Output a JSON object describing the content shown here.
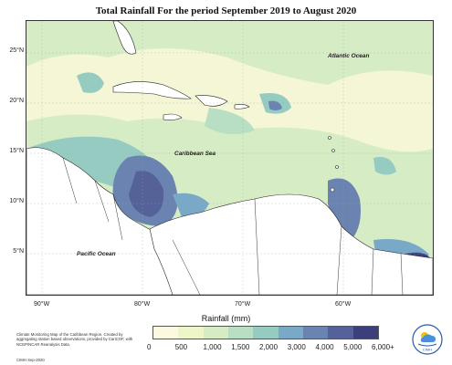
{
  "title": "Total Rainfall For the period September 2019 to August 2020",
  "map_labels": {
    "atlantic": "Atlantic Ocean",
    "caribbean": "Caribbean Sea",
    "pacific": "Pacific Ocean"
  },
  "lat_ticks": [
    "25°N",
    "20°N",
    "15°N",
    "10°N",
    "5°N"
  ],
  "lon_ticks": [
    "90°W",
    "80°W",
    "70°W",
    "60°W"
  ],
  "legend": {
    "title": "Rainfall (mm)",
    "labels": [
      "0",
      "500",
      "1,000",
      "1,500",
      "2,000",
      "3,000",
      "4,000",
      "5,000",
      "6,000+"
    ],
    "colors": [
      "#fbfae0",
      "#eef5c8",
      "#d6ecc4",
      "#b8dec3",
      "#95cbc0",
      "#7aa9c8",
      "#6a83b0",
      "#55629a",
      "#3c3f7a"
    ]
  },
  "footnote": "Climate Monitoring Map of the Caribbean Region. Created by aggregating station based observations, provided by CariCOF, with NCEP/NCAR Reanalysis Data.",
  "date_stamp": "CIMH Sep-2020",
  "logo_text": "CIMH"
}
